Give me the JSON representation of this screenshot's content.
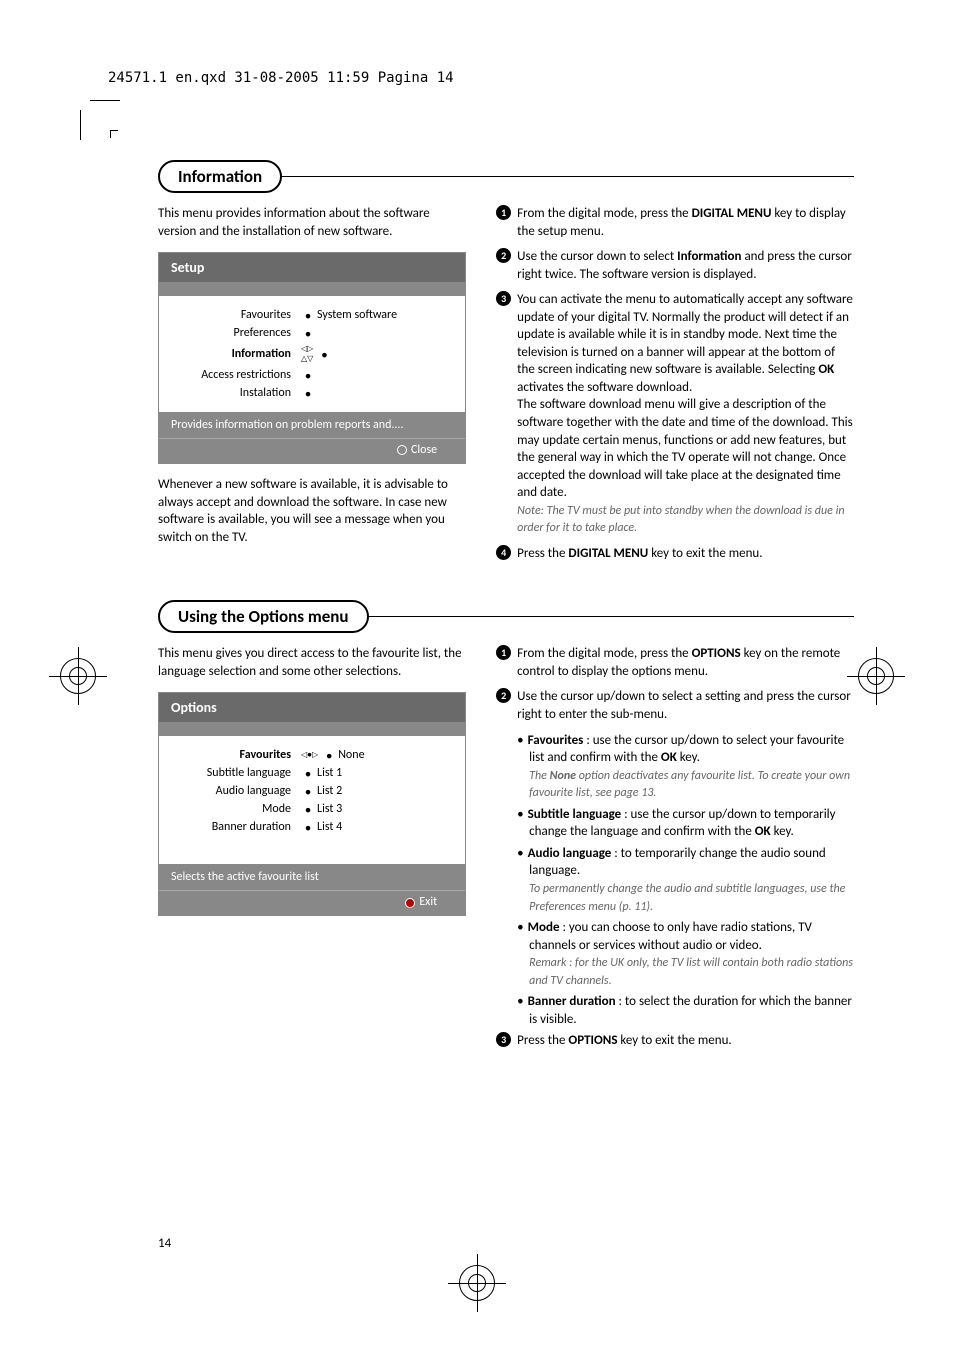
{
  "header": "24571.1 en.qxd   31-08-2005   11:59   Pagina 14",
  "page_number": "14",
  "section1": {
    "title": "Information",
    "intro": "This menu provides information about the software version and the installation of new software.",
    "menu": {
      "title": "Setup",
      "items": [
        {
          "label": "Favourites",
          "value": "System software",
          "bold": false
        },
        {
          "label": "Preferences",
          "value": "",
          "bold": false
        },
        {
          "label": "Information",
          "value": "",
          "bold": true,
          "arrows": true
        },
        {
          "label": "Access restrictions",
          "value": "",
          "bold": false
        },
        {
          "label": "Instalation",
          "value": "",
          "bold": false
        }
      ],
      "footer": "Provides information on problem reports and....",
      "close": "Close"
    },
    "left_note": "Whenever a new software is available, it is advisable to always accept and download the software. In case new software is available, you will see a message when you switch on the TV.",
    "steps": [
      {
        "n": "1",
        "html": "From the digital mode, press the <b>DIGITAL MENU</b> key to display the setup menu."
      },
      {
        "n": "2",
        "html": "Use the cursor down to select <b>Information</b> and press the cursor right twice. The software version is displayed."
      },
      {
        "n": "3",
        "html": "You can activate the menu to automatically accept any software update of your digital TV. Normally the product will detect if an update is available while it is in standby mode. Next time the television is turned on a banner will appear at the bottom of the screen indicating new software is available. Selecting <b>OK</b> activates the software download.<br>The software download menu will give a description of the software together with the date and time of the download. This may update certain menus, functions or add new features, but the general way in which the TV operate will not change. Once accepted the download will take place at the designated time and date.<br><span class='note'>Note: The TV must be put into standby when the download is due in order for it to take place.</span>"
      },
      {
        "n": "4",
        "html": " Press the <b>DIGITAL MENU</b> key to exit the menu."
      }
    ]
  },
  "section2": {
    "title": "Using the Options menu",
    "intro": "This menu gives you direct access to the favourite list, the language selection and some other selections.",
    "menu": {
      "title": "Options",
      "items": [
        {
          "label": "Favourites",
          "value": "None",
          "bold": true,
          "arrows": true
        },
        {
          "label": "Subtitle language",
          "value": "List 1",
          "bold": false
        },
        {
          "label": "Audio language",
          "value": "List 2",
          "bold": false
        },
        {
          "label": "Mode",
          "value": "List 3",
          "bold": false
        },
        {
          "label": "Banner duration",
          "value": "List 4",
          "bold": false
        }
      ],
      "footer": "Selects the active favourite list",
      "close": "Exit"
    },
    "steps": [
      {
        "n": "1",
        "html": "From the digital mode, press the <b>OPTIONS</b> key on the remote control to display the options menu."
      },
      {
        "n": "2",
        "html": "Use the cursor up/down to select a setting and press the cursor right to enter the sub-menu."
      }
    ],
    "bullets": [
      {
        "html": "<b>Favourites</b> : use the cursor up/down to select your favourite list and confirm with the <b>OK</b> key.<br><span class='note'>The <b>None</b> option deactivates any favourite list. To create your own favourite list, see page 13.</span>"
      },
      {
        "html": "<b>Subtitle language</b> : use the cursor up/down to temporarily change the language and confirm with the <b>OK</b> key."
      },
      {
        "html": "<b>Audio language</b> : to temporarily change the audio sound language.<br><span class='note'>To permanently change the audio and subtitle languages, use the Preferences menu (p. 11).</span>"
      },
      {
        "html": "<b>Mode</b> : you can choose to only have radio stations, TV channels or services without audio or video.<br><span class='note'>Remark : for the UK only, the TV list will contain both radio stations and TV channels.</span>"
      },
      {
        "html": "<b>Banner duration</b> : to select the duration for which the banner is visible."
      }
    ],
    "step3": {
      "n": "3",
      "html": "Press the <b>OPTIONS</b> key to exit the menu."
    }
  }
}
